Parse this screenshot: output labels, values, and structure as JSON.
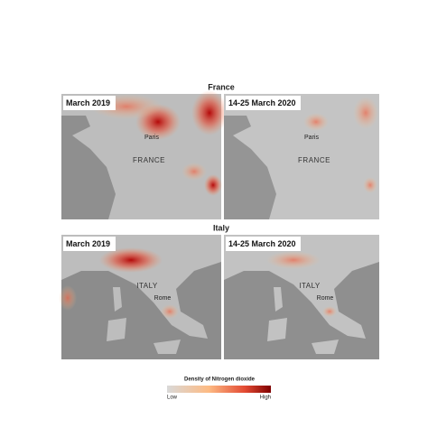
{
  "sections": [
    {
      "title": "France",
      "panels": [
        {
          "label": "March 2019",
          "places": [
            "Paris",
            "FRANCE"
          ]
        },
        {
          "label": "14-25 March 2020",
          "places": [
            "Paris",
            "FRANCE"
          ]
        }
      ]
    },
    {
      "title": "Italy",
      "panels": [
        {
          "label": "March 2019",
          "places": [
            "ITALY",
            "Rome"
          ]
        },
        {
          "label": "14-25 March 2020",
          "places": [
            "ITALY",
            "Rome"
          ]
        }
      ]
    }
  ],
  "legend": {
    "title": "Density of Nitrogen dioxide",
    "low": "Low",
    "high": "High"
  }
}
